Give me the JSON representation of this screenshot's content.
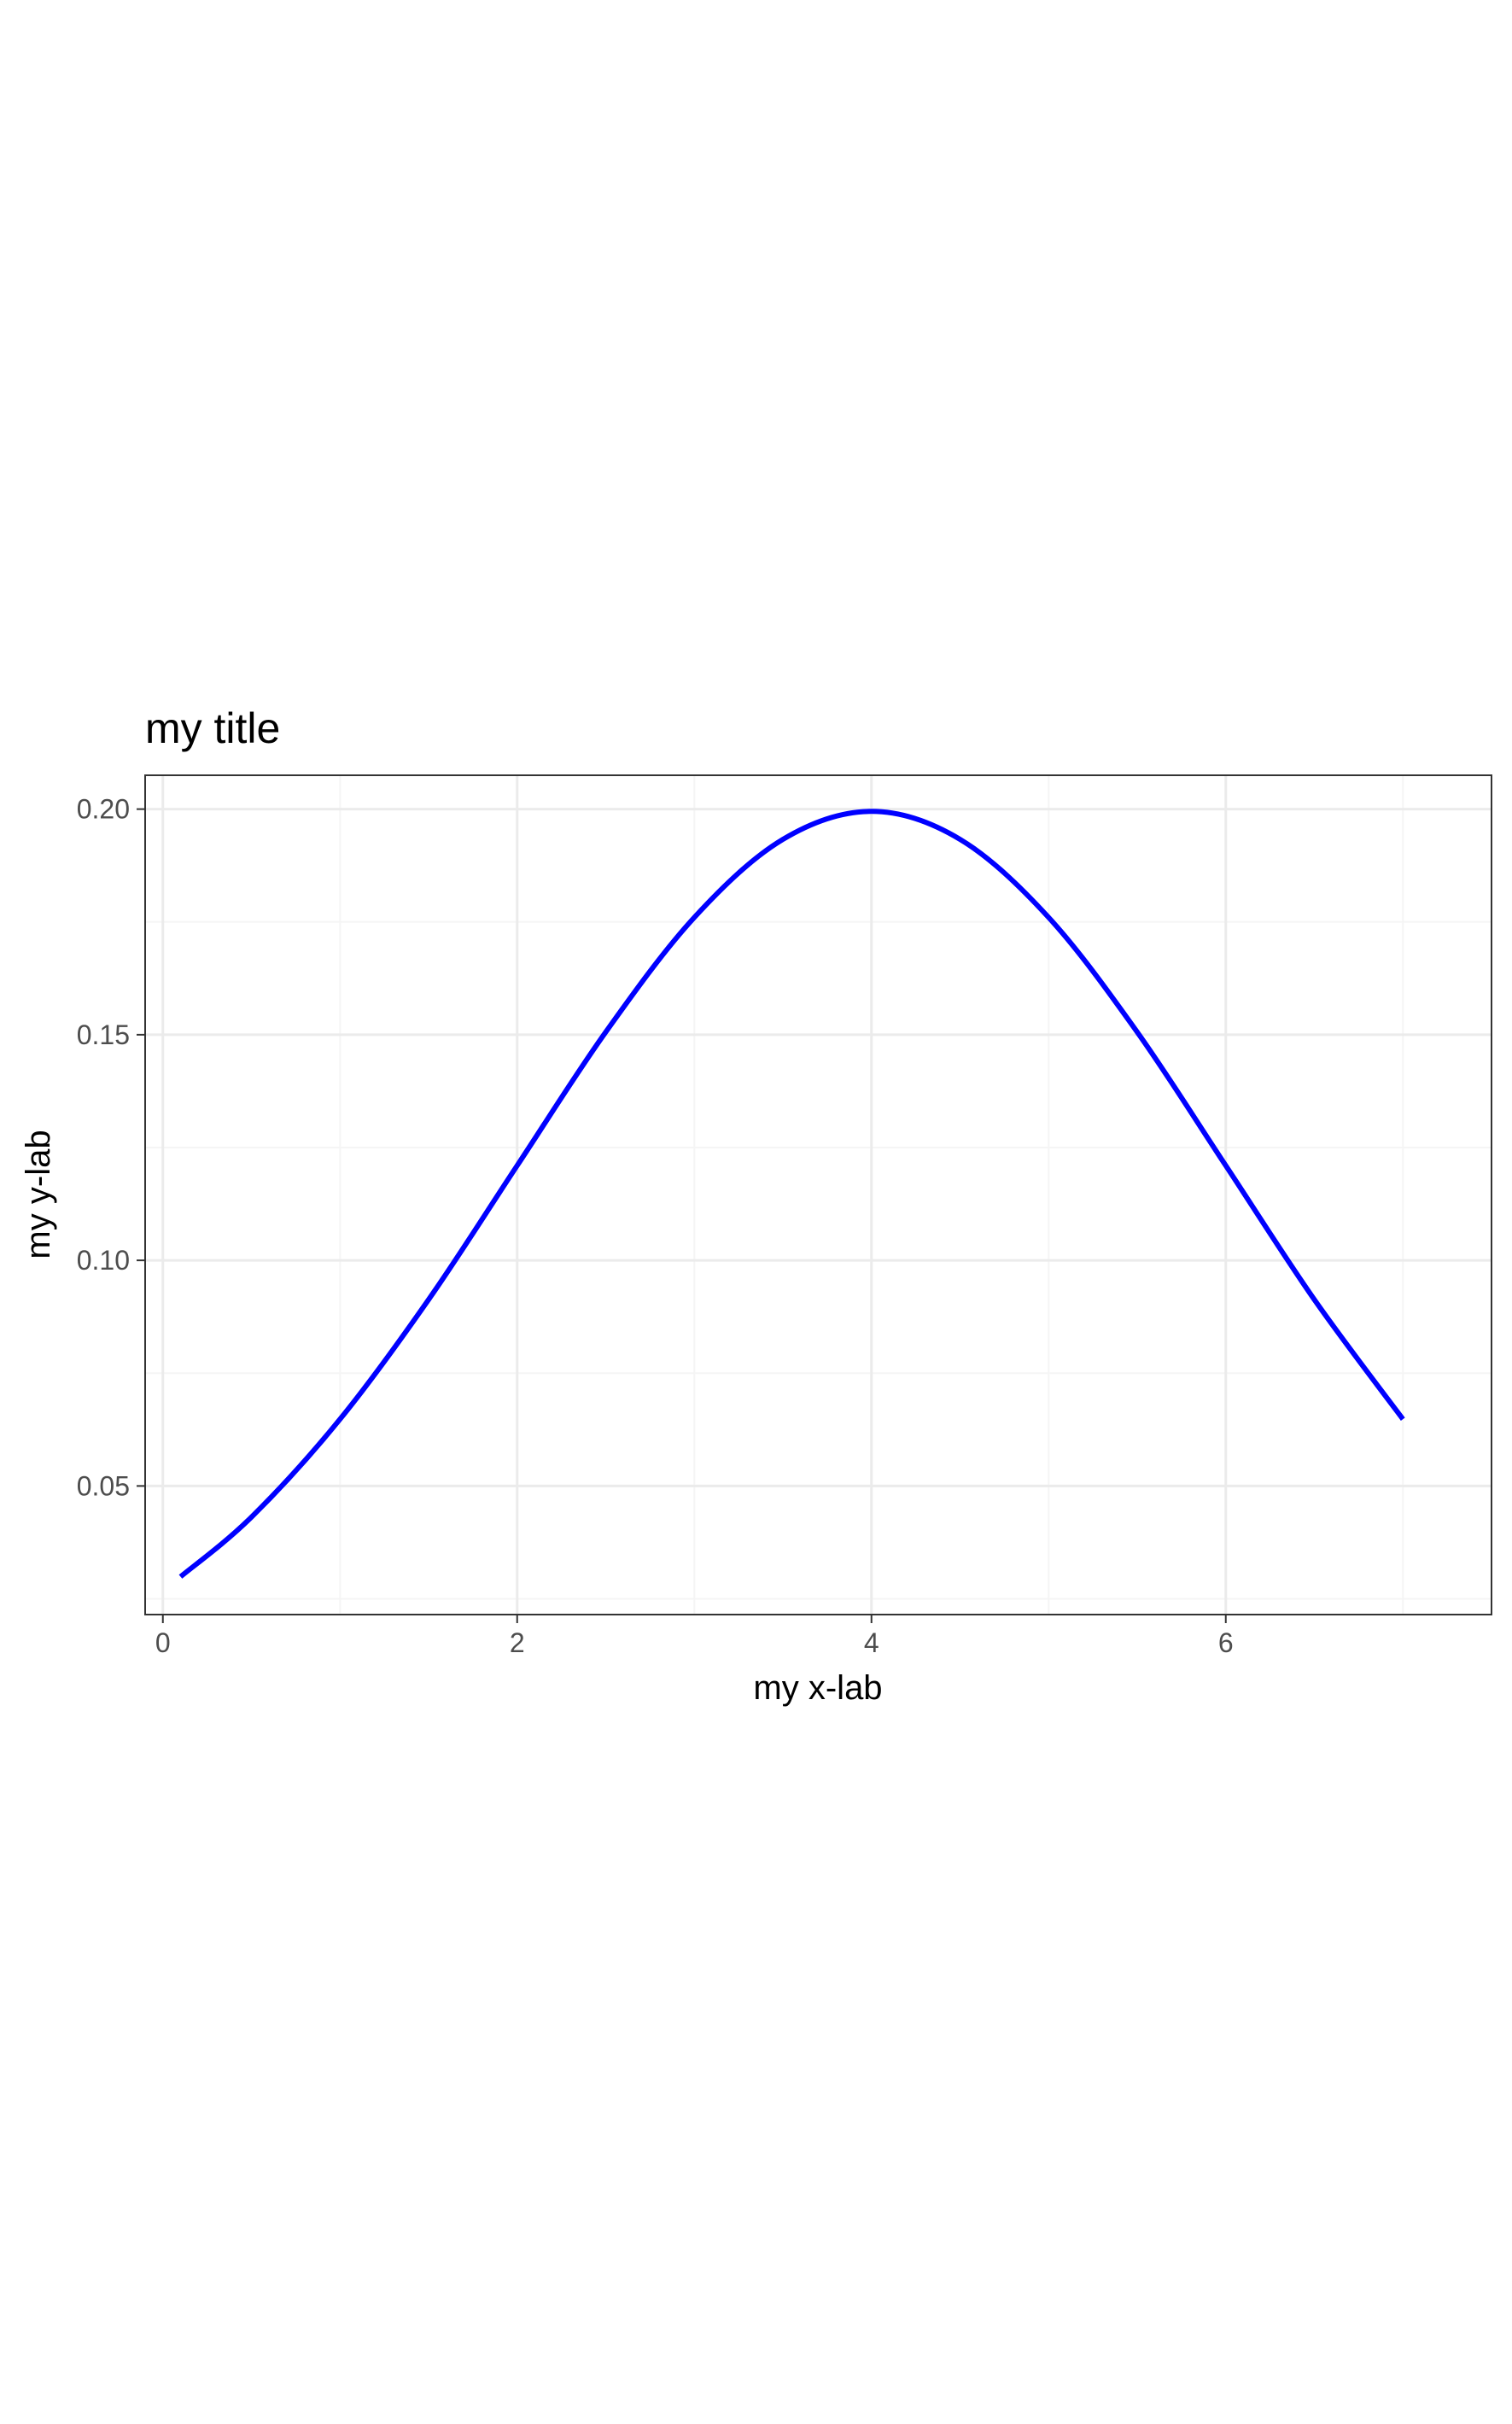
{
  "chart_data": {
    "type": "line",
    "title": "my title",
    "xlabel": "my x-lab",
    "ylabel": "my y-lab",
    "xlim": [
      -0.1,
      7.5
    ],
    "ylim": [
      0.0215,
      0.2075
    ],
    "x_ticks": [
      0,
      2,
      4,
      6
    ],
    "x_tick_labels": [
      "0",
      "2",
      "4",
      "6"
    ],
    "x_minor_ticks": [
      1,
      3,
      5,
      7
    ],
    "y_ticks": [
      0.05,
      0.1,
      0.15,
      0.2
    ],
    "y_tick_labels": [
      "0.05",
      "0.10",
      "0.15",
      "0.20"
    ],
    "y_minor_ticks": [
      0.025,
      0.075,
      0.125,
      0.175
    ],
    "grid": true,
    "legend": "none",
    "series": [
      {
        "color": "#0000ff",
        "x": [
          0.1,
          0.5,
          1.0,
          1.5,
          2.0,
          2.5,
          3.0,
          3.5,
          4.0,
          4.5,
          5.0,
          5.5,
          6.0,
          6.5,
          7.0
        ],
        "y": [
          0.0299,
          0.0431,
          0.0648,
          0.0913,
          0.121,
          0.1506,
          0.176,
          0.1933,
          0.1995,
          0.1933,
          0.176,
          0.1506,
          0.121,
          0.0913,
          0.0648
        ]
      }
    ],
    "colors": {
      "panel_border": "#333333",
      "grid_major": "#ebebeb",
      "grid_minor": "#f5f5f5",
      "tick_text": "#4d4d4d"
    }
  }
}
